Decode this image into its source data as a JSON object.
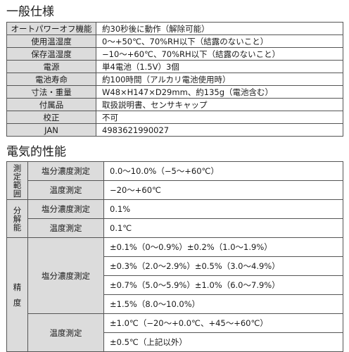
{
  "general": {
    "title": "一般仕様",
    "rows": [
      {
        "label": "オートパワーオフ機能",
        "value": "約30秒後に動作（解除可能）"
      },
      {
        "label": "使用温湿度",
        "value": "0〜+50℃、70%RH以下（結露のないこと）"
      },
      {
        "label": "保存温湿度",
        "value": "−10〜+60℃、70%RH以下（結露のないこと）"
      },
      {
        "label": "電源",
        "value": "単4電池（1.5V）3個"
      },
      {
        "label": "電池寿命",
        "value": "約100時間（アルカリ電池使用時）"
      },
      {
        "label": "寸法・重量",
        "value": "W48×H147×D29mm、約135g（電池含む）"
      },
      {
        "label": "付属品",
        "value": "取扱説明書、センサキャップ"
      },
      {
        "label": "校正",
        "value": "不可"
      },
      {
        "label": "JAN",
        "value": "4983621990027"
      }
    ]
  },
  "electrical": {
    "title": "電気的性能",
    "range": {
      "group_chars": [
        "測",
        "定",
        "範",
        "囲"
      ],
      "salt": {
        "label": "塩分濃度測定",
        "value": "0.0〜10.0%（−5〜+60℃）"
      },
      "temp": {
        "label": "温度測定",
        "value": "−20〜+60℃"
      }
    },
    "resolution": {
      "group_chars": [
        "分",
        "解",
        "能"
      ],
      "salt": {
        "label": "塩分濃度測定",
        "value": "0.1%"
      },
      "temp": {
        "label": "温度測定",
        "value": "0.1℃"
      }
    },
    "accuracy": {
      "group_chars": [
        "精",
        "度"
      ],
      "salt": {
        "label": "塩分濃度測定",
        "values": [
          "±0.1%（0〜0.9%）±0.2%（1.0〜1.9%）",
          "±0.3%（2.0〜2.9%）±0.5%（3.0〜4.9%）",
          "±0.7%（5.0〜5.9%）±1.0%（6.0〜7.9%）",
          "±1.5%（8.0〜10.0%）"
        ]
      },
      "temp": {
        "label": "温度測定",
        "values": [
          "±1.0℃（−20〜+0.0℃、+45〜+60℃）",
          "±0.5℃（上記以外）"
        ]
      }
    }
  }
}
